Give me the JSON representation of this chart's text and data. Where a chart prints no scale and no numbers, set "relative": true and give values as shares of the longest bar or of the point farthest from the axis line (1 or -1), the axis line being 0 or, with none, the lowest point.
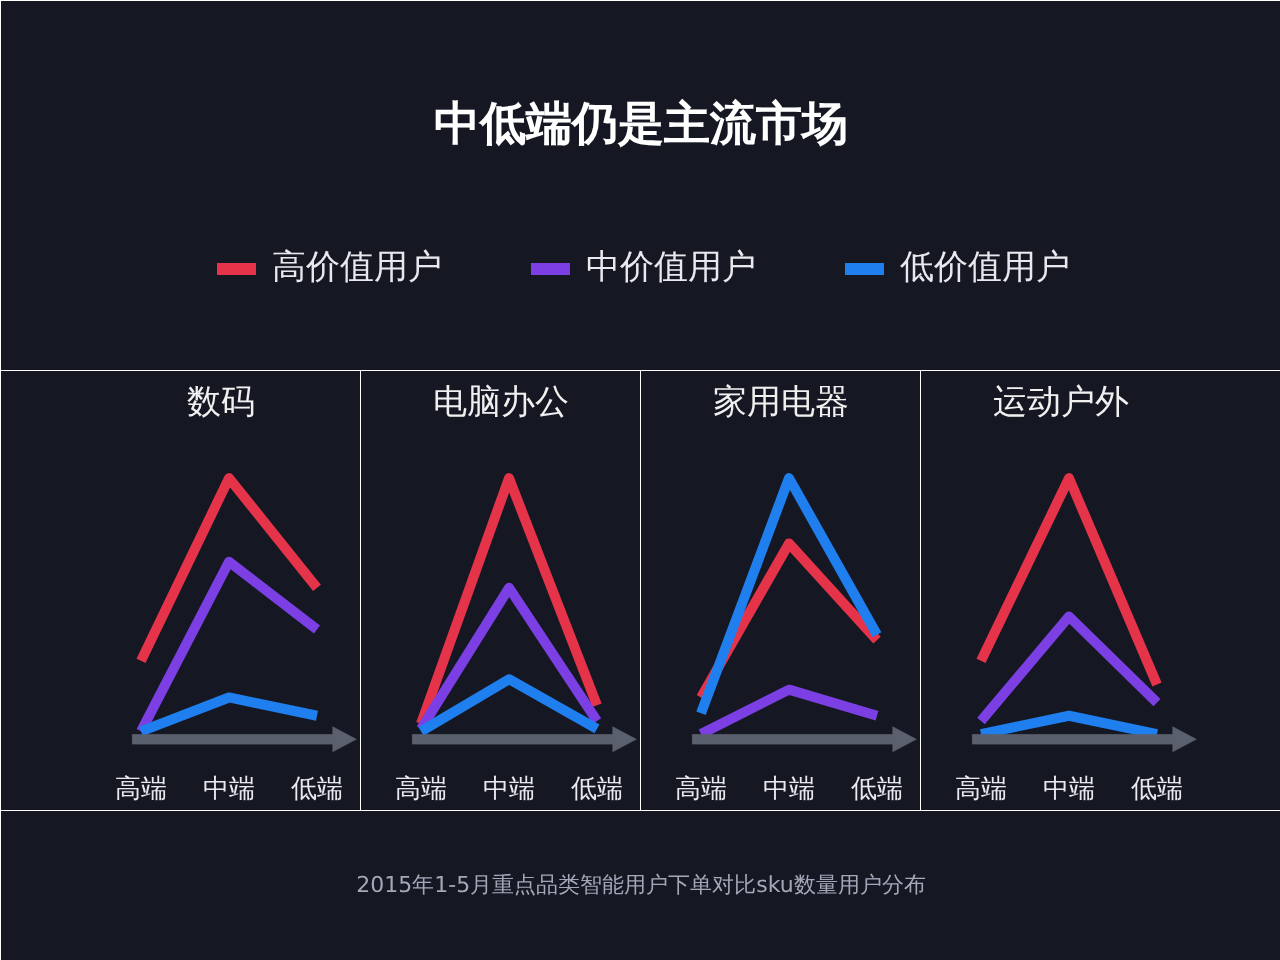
{
  "chart_data": [
    {
      "type": "other",
      "title": "中低端仍是主流市场",
      "annotations": [
        "2015年1-5月重点品类智能用户下单对比sku数量用户分布"
      ]
    },
    {
      "type": "line",
      "title": "数码",
      "categories": [
        "高端",
        "中端",
        "低端"
      ],
      "relative": true,
      "legend": "top",
      "series": [
        {
          "name": "高价值用户",
          "color": "#e5334a",
          "values": [
            0.3,
            1.0,
            0.58
          ]
        },
        {
          "name": "中价值用户",
          "color": "#7b3fe4",
          "values": [
            0.03,
            0.68,
            0.42
          ]
        },
        {
          "name": "低价值用户",
          "color": "#1f7fef",
          "values": [
            0.03,
            0.16,
            0.09
          ]
        }
      ]
    },
    {
      "type": "line",
      "title": "电脑办公",
      "categories": [
        "高端",
        "中端",
        "低端"
      ],
      "relative": true,
      "series": [
        {
          "color": "#e5334a",
          "values": [
            0.06,
            1.0,
            0.13
          ]
        },
        {
          "color": "#7b3fe4",
          "values": [
            0.04,
            0.58,
            0.07
          ]
        },
        {
          "color": "#1f7fef",
          "values": [
            0.03,
            0.23,
            0.04
          ]
        }
      ]
    },
    {
      "type": "line",
      "title": "家用电器",
      "categories": [
        "高端",
        "中端",
        "低端"
      ],
      "relative": true,
      "series": [
        {
          "color": "#e5334a",
          "values": [
            0.16,
            0.75,
            0.38
          ]
        },
        {
          "color": "#7b3fe4",
          "values": [
            0.02,
            0.19,
            0.09
          ]
        },
        {
          "color": "#1f7fef",
          "values": [
            0.1,
            1.0,
            0.4
          ]
        }
      ]
    },
    {
      "type": "line",
      "title": "运动户外",
      "categories": [
        "高端",
        "中端",
        "低端"
      ],
      "relative": true,
      "series": [
        {
          "color": "#e5334a",
          "values": [
            0.3,
            1.0,
            0.21
          ]
        },
        {
          "color": "#7b3fe4",
          "values": [
            0.07,
            0.47,
            0.14
          ]
        },
        {
          "color": "#1f7fef",
          "values": [
            0.02,
            0.09,
            0.02
          ]
        }
      ]
    }
  ]
}
